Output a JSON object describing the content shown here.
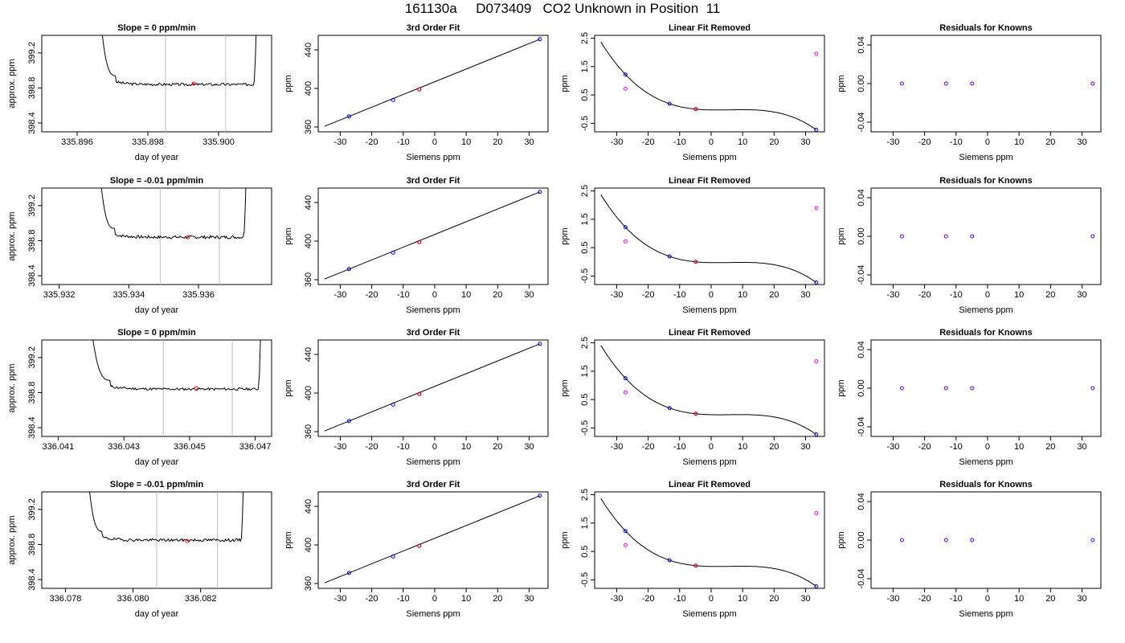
{
  "page_title": "161130a     D073409   CO2 Unknown in Position  11",
  "chart_data": [
    {
      "row": 0,
      "col": 0,
      "type": "line",
      "title": "Slope =  0  ppm/min",
      "xlabel": "day of year",
      "ylabel": "approx. ppm",
      "xlim": [
        335.895,
        335.9015
      ],
      "ylim": [
        398.3,
        399.4
      ],
      "xticks": [
        335.896,
        335.898,
        335.9
      ],
      "xtick_labels": [
        "335.896",
        "335.898",
        "335.900"
      ],
      "yticks": [
        398.4,
        398.8,
        399.2
      ],
      "ytick_labels": [
        "398.4",
        "398.8",
        "399.2"
      ],
      "vlines": [
        335.8985,
        335.9002
      ],
      "curve": {
        "start": 335.8966,
        "settle": 335.8971,
        "end": 335.9011,
        "rise_end": 335.901,
        "level": 398.84,
        "wiggle": 0.015,
        "seed": 3
      },
      "marker": {
        "x": 335.8993,
        "y": 398.85,
        "color": "#ff0000"
      }
    },
    {
      "row": 0,
      "col": 1,
      "type": "scatter",
      "title": "3rd Order Fit",
      "xlabel": "Siemens ppm",
      "ylabel": "ppm",
      "xlim": [
        -37,
        36
      ],
      "ylim": [
        355,
        455
      ],
      "xticks": [
        -30,
        -20,
        -10,
        0,
        10,
        20,
        30
      ],
      "xtick_labels": [
        "-30",
        "-20",
        "-10",
        "0",
        "10",
        "20",
        "30"
      ],
      "yticks": [
        360,
        400,
        440
      ],
      "ytick_labels": [
        "360",
        "400",
        "440"
      ],
      "points_x": [
        -27.2,
        -13.2,
        -4.9,
        33.4
      ],
      "points_y": [
        371.0,
        388.0,
        399.0,
        451.0
      ],
      "red_point": {
        "x": -4.9,
        "y": 399.0
      },
      "line_x": [
        -35,
        33.4
      ]
    },
    {
      "row": 0,
      "col": 2,
      "type": "scatter",
      "title": "Linear Fit Removed",
      "xlabel": "Siemens ppm",
      "ylabel": "ppm",
      "xlim": [
        -37,
        36
      ],
      "ylim": [
        -0.8,
        2.6
      ],
      "xticks": [
        -30,
        -20,
        -10,
        0,
        10,
        20,
        30
      ],
      "xtick_labels": [
        "-30",
        "-20",
        "-10",
        "0",
        "10",
        "20",
        "30"
      ],
      "yticks": [
        -0.5,
        0.5,
        1.5,
        2.5
      ],
      "ytick_labels": [
        "-0.5",
        "0.5",
        "1.5",
        "2.5"
      ],
      "blue_x": [
        -27.2,
        -13.2,
        -4.9,
        33.4
      ],
      "blue_y": [
        1.22,
        0.19,
        0.0,
        -0.73
      ],
      "magenta_x": [
        -27.2,
        33.4
      ],
      "magenta_y": [
        0.72,
        1.95
      ],
      "red_point": {
        "x": -4.9,
        "y": 0.0
      },
      "curve_x": [
        -35,
        33.4
      ],
      "curve_roots": [
        -12.0,
        14.0
      ],
      "curve_coef": -0.00055
    },
    {
      "row": 0,
      "col": 3,
      "type": "scatter",
      "title": "Residuals for Knowns",
      "xlabel": "Siemens ppm",
      "ylabel": "ppm",
      "xlim": [
        -37,
        36
      ],
      "ylim": [
        -0.05,
        0.05
      ],
      "xticks": [
        -30,
        -20,
        -10,
        0,
        10,
        20,
        30
      ],
      "xtick_labels": [
        "-30",
        "-20",
        "-10",
        "0",
        "10",
        "20",
        "30"
      ],
      "yticks": [
        -0.04,
        0.0,
        0.04
      ],
      "ytick_labels": [
        "-0.04",
        "0.00",
        "0.04"
      ],
      "points_x": [
        -27.2,
        -13.2,
        -4.9,
        33.4
      ],
      "points_y": [
        0,
        0,
        0,
        0
      ]
    },
    {
      "row": 1,
      "col": 0,
      "type": "line",
      "title": "Slope =  -0.01  ppm/min",
      "xlabel": "day of year",
      "ylabel": "approx. ppm",
      "xlim": [
        335.9315,
        335.9381
      ],
      "ylim": [
        398.3,
        399.4
      ],
      "xticks": [
        335.932,
        335.934,
        335.936
      ],
      "xtick_labels": [
        "335.932",
        "335.934",
        "335.936"
      ],
      "yticks": [
        398.4,
        398.8,
        399.2
      ],
      "ytick_labels": [
        "398.4",
        "398.8",
        "399.2"
      ],
      "vlines": [
        335.9349,
        335.9366
      ],
      "curve": {
        "start": 335.9331,
        "settle": 335.9336,
        "end": 335.9374,
        "rise_end": 335.9373,
        "level": 398.84,
        "wiggle": 0.017,
        "seed": 7
      },
      "marker": {
        "x": 335.9357,
        "y": 398.84,
        "color": "#ff0000"
      }
    },
    {
      "row": 1,
      "col": 1,
      "type": "scatter",
      "title": "3rd Order Fit",
      "xlabel": "Siemens ppm",
      "ylabel": "ppm",
      "xlim": [
        -37,
        36
      ],
      "ylim": [
        355,
        455
      ],
      "xticks": [
        -30,
        -20,
        -10,
        0,
        10,
        20,
        30
      ],
      "xtick_labels": [
        "-30",
        "-20",
        "-10",
        "0",
        "10",
        "20",
        "30"
      ],
      "yticks": [
        360,
        400,
        440
      ],
      "ytick_labels": [
        "360",
        "400",
        "440"
      ],
      "points_x": [
        -27.2,
        -13.2,
        -4.9,
        33.4
      ],
      "points_y": [
        371.0,
        388.0,
        399.0,
        451.0
      ],
      "red_point": {
        "x": -4.9,
        "y": 399.0
      },
      "line_x": [
        -35,
        33.4
      ]
    },
    {
      "row": 1,
      "col": 2,
      "type": "scatter",
      "title": "Linear Fit Removed",
      "xlabel": "Siemens ppm",
      "ylabel": "ppm",
      "xlim": [
        -37,
        36
      ],
      "ylim": [
        -0.8,
        2.6
      ],
      "xticks": [
        -30,
        -20,
        -10,
        0,
        10,
        20,
        30
      ],
      "xtick_labels": [
        "-30",
        "-20",
        "-10",
        "0",
        "10",
        "20",
        "30"
      ],
      "yticks": [
        -0.5,
        0.5,
        1.5,
        2.5
      ],
      "ytick_labels": [
        "-0.5",
        "0.5",
        "1.5",
        "2.5"
      ],
      "blue_x": [
        -27.2,
        -13.2,
        -4.9,
        33.4
      ],
      "blue_y": [
        1.22,
        0.19,
        0.0,
        -0.73
      ],
      "magenta_x": [
        -27.2,
        33.4
      ],
      "magenta_y": [
        0.72,
        1.9
      ],
      "red_point": {
        "x": -4.9,
        "y": 0.0
      },
      "curve_x": [
        -35,
        33.4
      ],
      "curve_roots": [
        -12.0,
        14.0
      ],
      "curve_coef": -0.00055
    },
    {
      "row": 1,
      "col": 3,
      "type": "scatter",
      "title": "Residuals for Knowns",
      "xlabel": "Siemens ppm",
      "ylabel": "ppm",
      "xlim": [
        -37,
        36
      ],
      "ylim": [
        -0.05,
        0.05
      ],
      "xticks": [
        -30,
        -20,
        -10,
        0,
        10,
        20,
        30
      ],
      "xtick_labels": [
        "-30",
        "-20",
        "-10",
        "0",
        "10",
        "20",
        "30"
      ],
      "yticks": [
        -0.04,
        0.0,
        0.04
      ],
      "ytick_labels": [
        "-0.04",
        "0.00",
        "0.04"
      ],
      "points_x": [
        -27.2,
        -13.2,
        -4.9,
        33.4
      ],
      "points_y": [
        0,
        0,
        0,
        0
      ]
    },
    {
      "row": 2,
      "col": 0,
      "type": "line",
      "title": "Slope =  0  ppm/min",
      "xlabel": "day of year",
      "ylabel": "approx. ppm",
      "xlim": [
        336.0405,
        336.0475
      ],
      "ylim": [
        398.3,
        399.4
      ],
      "xticks": [
        336.041,
        336.043,
        336.045,
        336.047
      ],
      "xtick_labels": [
        "336.041",
        "336.043",
        "336.045",
        "336.047"
      ],
      "yticks": [
        398.4,
        398.8,
        399.2
      ],
      "ytick_labels": [
        "398.4",
        "398.8",
        "399.2"
      ],
      "vlines": [
        336.0442,
        336.0463
      ],
      "curve": {
        "start": 336.0419,
        "settle": 336.0426,
        "end": 336.0472,
        "rise_end": 336.0471,
        "level": 398.84,
        "wiggle": 0.014,
        "seed": 11
      },
      "marker": {
        "x": 336.0452,
        "y": 398.85,
        "color": "#ff0000"
      }
    },
    {
      "row": 2,
      "col": 1,
      "type": "scatter",
      "title": "3rd Order Fit",
      "xlabel": "Siemens ppm",
      "ylabel": "ppm",
      "xlim": [
        -37,
        36
      ],
      "ylim": [
        355,
        455
      ],
      "xticks": [
        -30,
        -20,
        -10,
        0,
        10,
        20,
        30
      ],
      "xtick_labels": [
        "-30",
        "-20",
        "-10",
        "0",
        "10",
        "20",
        "30"
      ],
      "yticks": [
        360,
        400,
        440
      ],
      "ytick_labels": [
        "360",
        "400",
        "440"
      ],
      "points_x": [
        -27.2,
        -13.2,
        -4.9,
        33.4
      ],
      "points_y": [
        371.0,
        388.0,
        399.0,
        451.0
      ],
      "red_point": {
        "x": -4.9,
        "y": 399.0
      },
      "line_x": [
        -35,
        33.4
      ]
    },
    {
      "row": 2,
      "col": 2,
      "type": "scatter",
      "title": "Linear Fit Removed",
      "xlabel": "Siemens ppm",
      "ylabel": "ppm",
      "xlim": [
        -37,
        36
      ],
      "ylim": [
        -0.8,
        2.6
      ],
      "xticks": [
        -30,
        -20,
        -10,
        0,
        10,
        20,
        30
      ],
      "xtick_labels": [
        "-30",
        "-20",
        "-10",
        "0",
        "10",
        "20",
        "30"
      ],
      "yticks": [
        -0.5,
        0.5,
        1.5,
        2.5
      ],
      "ytick_labels": [
        "-0.5",
        "0.5",
        "1.5",
        "2.5"
      ],
      "blue_x": [
        -27.2,
        -13.2,
        -4.9,
        33.4
      ],
      "blue_y": [
        1.25,
        0.2,
        0.0,
        -0.73
      ],
      "magenta_x": [
        -27.2,
        33.4
      ],
      "magenta_y": [
        0.75,
        1.85
      ],
      "red_point": {
        "x": -4.9,
        "y": 0.0
      },
      "curve_x": [
        -35,
        33.4
      ],
      "curve_roots": [
        -12.0,
        14.0
      ],
      "curve_coef": -0.00055
    },
    {
      "row": 2,
      "col": 3,
      "type": "scatter",
      "title": "Residuals for Knowns",
      "xlabel": "Siemens ppm",
      "ylabel": "ppm",
      "xlim": [
        -37,
        36
      ],
      "ylim": [
        -0.05,
        0.05
      ],
      "xticks": [
        -30,
        -20,
        -10,
        0,
        10,
        20,
        30
      ],
      "xtick_labels": [
        "-30",
        "-20",
        "-10",
        "0",
        "10",
        "20",
        "30"
      ],
      "yticks": [
        -0.04,
        0.0,
        0.04
      ],
      "ytick_labels": [
        "-0.04",
        "0.00",
        "0.04"
      ],
      "points_x": [
        -27.2,
        -13.2,
        -4.9,
        33.4
      ],
      "points_y": [
        0,
        0,
        0,
        0
      ]
    },
    {
      "row": 3,
      "col": 0,
      "type": "line",
      "title": "Slope =  -0.01  ppm/min",
      "xlabel": "day of year",
      "ylabel": "approx. ppm",
      "xlim": [
        336.0773,
        336.0841
      ],
      "ylim": [
        398.3,
        399.4
      ],
      "xticks": [
        336.078,
        336.08,
        336.082
      ],
      "xtick_labels": [
        "336.078",
        "336.080",
        "336.082"
      ],
      "yticks": [
        398.4,
        398.8,
        399.2
      ],
      "ytick_labels": [
        "398.4",
        "398.8",
        "399.2"
      ],
      "vlines": [
        336.0807,
        336.0825
      ],
      "curve": {
        "start": 336.0786,
        "settle": 336.0791,
        "end": 336.0833,
        "rise_end": 336.0832,
        "level": 398.85,
        "wiggle": 0.016,
        "seed": 19
      },
      "marker": {
        "x": 336.0816,
        "y": 398.84,
        "color": "#ff0000"
      }
    },
    {
      "row": 3,
      "col": 1,
      "type": "scatter",
      "title": "3rd Order Fit",
      "xlabel": "Siemens ppm",
      "ylabel": "ppm",
      "xlim": [
        -37,
        36
      ],
      "ylim": [
        355,
        455
      ],
      "xticks": [
        -30,
        -20,
        -10,
        0,
        10,
        20,
        30
      ],
      "xtick_labels": [
        "-30",
        "-20",
        "-10",
        "0",
        "10",
        "20",
        "30"
      ],
      "yticks": [
        360,
        400,
        440
      ],
      "ytick_labels": [
        "360",
        "400",
        "440"
      ],
      "points_x": [
        -27.2,
        -13.2,
        -4.9,
        33.4
      ],
      "points_y": [
        371.0,
        388.0,
        399.0,
        451.0
      ],
      "red_point": {
        "x": -4.9,
        "y": 399.0
      },
      "line_x": [
        -35,
        33.4
      ]
    },
    {
      "row": 3,
      "col": 2,
      "type": "scatter",
      "title": "Linear Fit Removed",
      "xlabel": "Siemens ppm",
      "ylabel": "ppm",
      "xlim": [
        -37,
        36
      ],
      "ylim": [
        -0.8,
        2.6
      ],
      "xticks": [
        -30,
        -20,
        -10,
        0,
        10,
        20,
        30
      ],
      "xtick_labels": [
        "-30",
        "-20",
        "-10",
        "0",
        "10",
        "20",
        "30"
      ],
      "yticks": [
        -0.5,
        0.5,
        1.5,
        2.5
      ],
      "ytick_labels": [
        "-0.5",
        "0.5",
        "1.5",
        "2.5"
      ],
      "blue_x": [
        -27.2,
        -13.2,
        -4.9,
        33.4
      ],
      "blue_y": [
        1.22,
        0.19,
        0.0,
        -0.73
      ],
      "magenta_x": [
        -27.2,
        33.4
      ],
      "magenta_y": [
        0.72,
        1.85
      ],
      "red_point": {
        "x": -4.9,
        "y": 0.0
      },
      "curve_x": [
        -35,
        33.4
      ],
      "curve_roots": [
        -12.0,
        14.0
      ],
      "curve_coef": -0.00055
    },
    {
      "row": 3,
      "col": 3,
      "type": "scatter",
      "title": "Residuals for Knowns",
      "xlabel": "Siemens ppm",
      "ylabel": "ppm",
      "xlim": [
        -37,
        36
      ],
      "ylim": [
        -0.05,
        0.05
      ],
      "xticks": [
        -30,
        -20,
        -10,
        0,
        10,
        20,
        30
      ],
      "xtick_labels": [
        "-30",
        "-20",
        "-10",
        "0",
        "10",
        "20",
        "30"
      ],
      "yticks": [
        -0.04,
        0.0,
        0.04
      ],
      "ytick_labels": [
        "-0.04",
        "0.00",
        "0.04"
      ],
      "points_x": [
        -27.2,
        -13.2,
        -4.9,
        33.4
      ],
      "points_y": [
        0,
        0,
        0,
        0
      ]
    }
  ],
  "colors": {
    "axis": "#000000",
    "vline": "#bebebe",
    "blue_point": "#0000ff",
    "magenta_point": "#ff00ff",
    "red_point": "#ff0000",
    "purple_point": "#5000ff"
  }
}
